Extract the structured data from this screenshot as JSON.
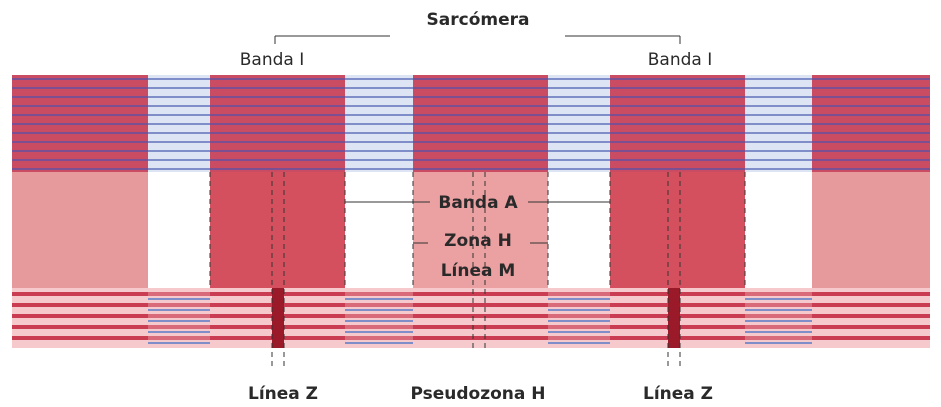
{
  "header": {
    "title": "Sarcómera",
    "band_i_left": "Banda I",
    "band_i_right": "Banda I"
  },
  "center_labels": {
    "band_a": "Banda A",
    "zone_h": "Zona H",
    "line_m": "Línea M"
  },
  "bottom_labels": {
    "line_z_left": "Línea Z",
    "pseudozone_h": "Pseudozona H",
    "line_z_right": "Línea Z"
  }
}
